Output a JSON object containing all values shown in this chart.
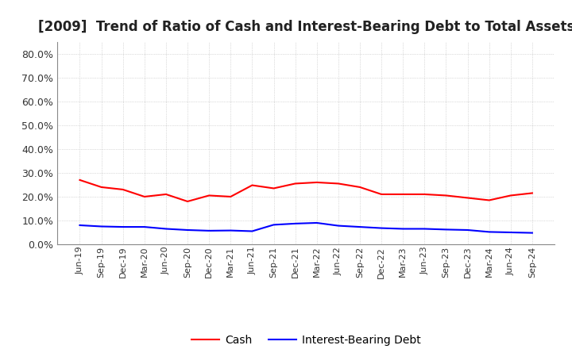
{
  "title": "[2009]  Trend of Ratio of Cash and Interest-Bearing Debt to Total Assets",
  "title_fontsize": 12,
  "title_color": "#222222",
  "ylim": [
    0.0,
    0.85
  ],
  "yticks": [
    0.0,
    0.1,
    0.2,
    0.3,
    0.4,
    0.5,
    0.6,
    0.7,
    0.8
  ],
  "background_color": "#ffffff",
  "plot_bg_color": "#ffffff",
  "grid_color": "#aaaaaa",
  "x_labels": [
    "Jun-19",
    "Sep-19",
    "Dec-19",
    "Mar-20",
    "Jun-20",
    "Sep-20",
    "Dec-20",
    "Mar-21",
    "Jun-21",
    "Sep-21",
    "Dec-21",
    "Mar-22",
    "Jun-22",
    "Sep-22",
    "Dec-22",
    "Mar-23",
    "Jun-23",
    "Sep-23",
    "Dec-23",
    "Mar-24",
    "Jun-24",
    "Sep-24"
  ],
  "cash": [
    0.27,
    0.24,
    0.23,
    0.2,
    0.21,
    0.18,
    0.205,
    0.2,
    0.248,
    0.235,
    0.255,
    0.26,
    0.255,
    0.24,
    0.21,
    0.21,
    0.21,
    0.205,
    0.195,
    0.185,
    0.205,
    0.215
  ],
  "interest_bearing_debt": [
    0.08,
    0.075,
    0.073,
    0.073,
    0.065,
    0.06,
    0.057,
    0.058,
    0.055,
    0.082,
    0.087,
    0.09,
    0.078,
    0.073,
    0.068,
    0.065,
    0.065,
    0.062,
    0.06,
    0.052,
    0.05,
    0.048
  ],
  "cash_color": "#ff0000",
  "debt_color": "#0000ff",
  "line_width": 1.5,
  "legend_labels": [
    "Cash",
    "Interest-Bearing Debt"
  ]
}
